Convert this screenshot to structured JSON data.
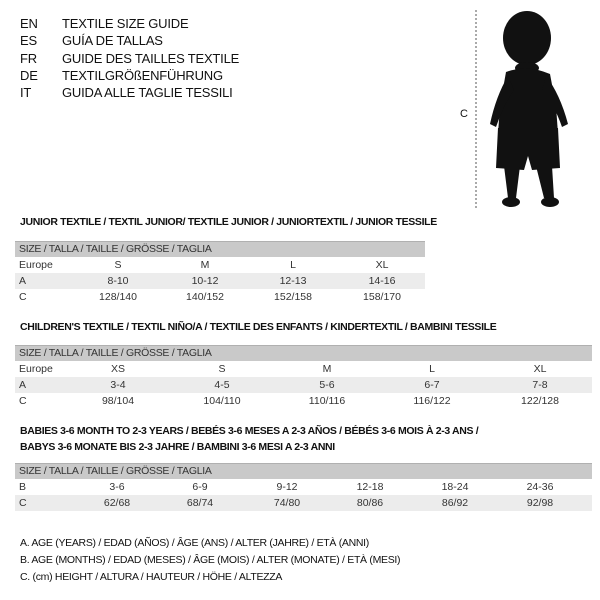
{
  "languages": [
    {
      "code": "EN",
      "text": "TEXTILE SIZE GUIDE"
    },
    {
      "code": "ES",
      "text": "GUÍA DE TALLAS"
    },
    {
      "code": "FR",
      "text": "GUIDE DES TAILLES TEXTILE"
    },
    {
      "code": "DE",
      "text": "TEXTILGRÖßENFÜHRUNG"
    },
    {
      "code": "IT",
      "text": "GUIDA ALLE TAGLIE TESSILI"
    }
  ],
  "figure": {
    "measure_label": "C"
  },
  "junior": {
    "title": "JUNIOR TEXTILE / TEXTIL JUNIOR/ TEXTILE JUNIOR / JUNIORTEXTIL / JUNIOR TESSILE",
    "header": "SIZE / TALLA / TAILLE / GRÖSSE / TAGLIA",
    "rows": [
      {
        "label": "Europe",
        "values": [
          "S",
          "M",
          "L",
          "XL"
        ]
      },
      {
        "label": "A",
        "values": [
          "8-10",
          "10-12",
          "12-13",
          "14-16"
        ]
      },
      {
        "label": "C",
        "values": [
          "128/140",
          "140/152",
          "152/158",
          "158/170"
        ]
      }
    ]
  },
  "children": {
    "title": "CHILDREN'S TEXTILE / TEXTIL NIÑO/A / TEXTILE DES ENFANTS / KINDERTEXTIL / BAMBINI TESSILE",
    "header": "SIZE / TALLA / TAILLE / GRÖSSE / TAGLIA",
    "rows": [
      {
        "label": "Europe",
        "values": [
          "XS",
          "S",
          "M",
          "L",
          "XL"
        ]
      },
      {
        "label": "A",
        "values": [
          "3-4",
          "4-5",
          "5-6",
          "6-7",
          "7-8"
        ]
      },
      {
        "label": "C",
        "values": [
          "98/104",
          "104/110",
          "110/116",
          "116/122",
          "122/128"
        ]
      }
    ]
  },
  "babies": {
    "title_line1": "BABIES 3-6 MONTH TO 2-3 YEARS / BEBÉS 3-6 MESES A 2-3 AÑOS / BÉBÉS 3-6 MOIS À 2-3 ANS /",
    "title_line2": "BABYS 3-6 MONATE BIS 2-3 JAHRE / BAMBINI 3-6 MESI A 2-3 ANNI",
    "header": "SIZE / TALLA / TAILLE / GRÖSSE / TAGLIA",
    "rows": [
      {
        "label": "B",
        "values": [
          "3-6",
          "6-9",
          "9-12",
          "12-18",
          "18-24",
          "24-36"
        ]
      },
      {
        "label": "C",
        "values": [
          "62/68",
          "68/74",
          "74/80",
          "80/86",
          "86/92",
          "92/98"
        ]
      }
    ]
  },
  "notes": [
    "A. AGE (YEARS) / EDAD (AÑOS) / ÂGE (ANS) / ALTER (JAHRE) / ETÀ (ANNI)",
    "B. AGE (MONTHS) / EDAD (MESES) / ÂGE (MOIS) / ALTER (MONATE) / ETÀ (MESI)",
    "C. (cm) HEIGHT / ALTURA / HAUTEUR / HÖHE / ALTEZZA"
  ]
}
